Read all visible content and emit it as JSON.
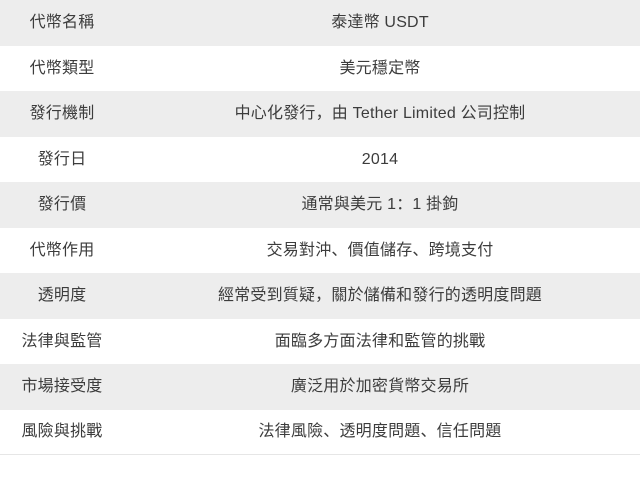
{
  "colors": {
    "row_bg": "#ffffff",
    "row_alt_bg": "#ededed",
    "text": "#3c3c3c",
    "bottom_border": "#e6e6e6"
  },
  "table": {
    "rows": [
      {
        "label": "代幣名稱",
        "value": "泰達幣 USDT"
      },
      {
        "label": "代幣類型",
        "value": "美元穩定幣"
      },
      {
        "label": "發行機制",
        "value": "中心化發行，由 Tether Limited 公司控制"
      },
      {
        "label": "發行日",
        "value": "2014"
      },
      {
        "label": "發行價",
        "value": "通常與美元 1：1 掛鉤"
      },
      {
        "label": "代幣作用",
        "value": "交易對沖、價值儲存、跨境支付"
      },
      {
        "label": "透明度",
        "value": "經常受到質疑，關於儲備和發行的透明度問題"
      },
      {
        "label": "法律與監管",
        "value": "面臨多方面法律和監管的挑戰"
      },
      {
        "label": "市場接受度",
        "value": "廣泛用於加密貨幣交易所"
      },
      {
        "label": "風險與挑戰",
        "value": "法律風險、透明度問題、信任問題"
      }
    ]
  }
}
